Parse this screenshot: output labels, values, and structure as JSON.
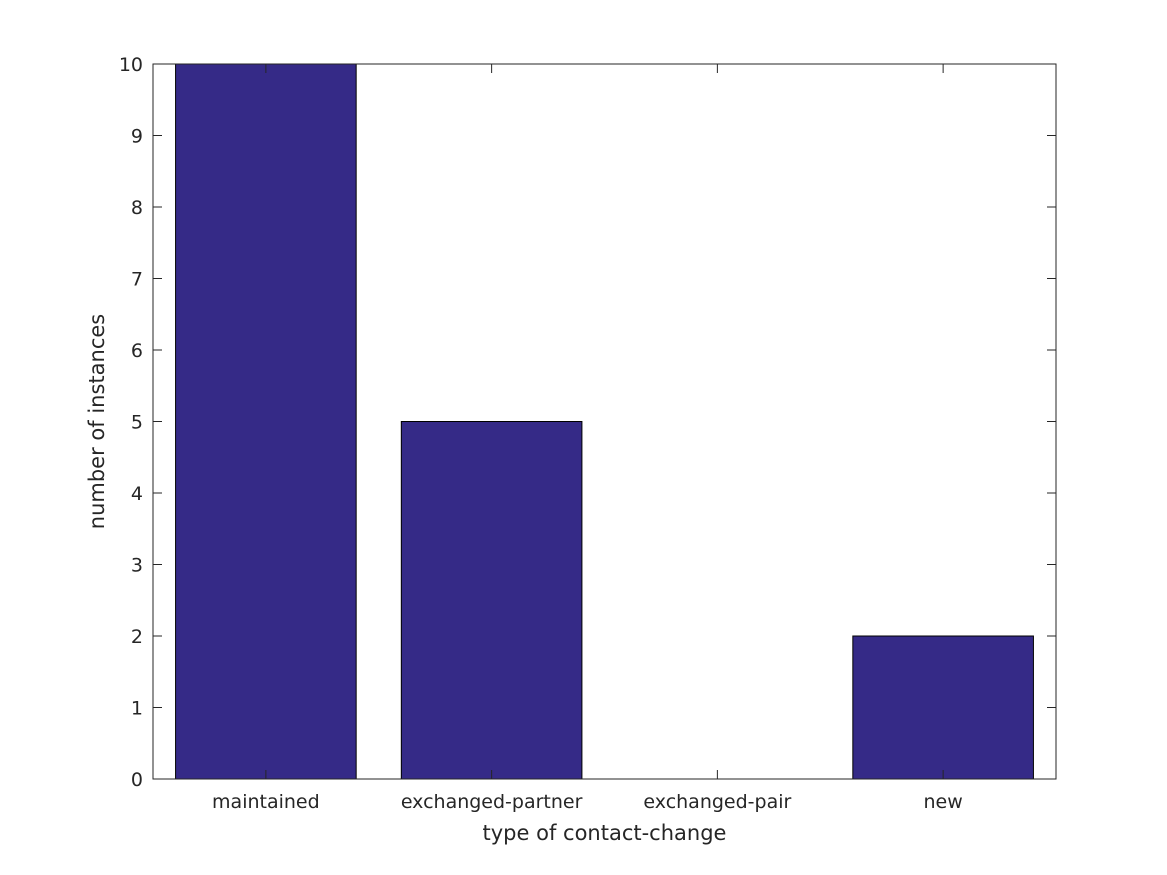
{
  "chart_data": {
    "type": "bar",
    "categories": [
      "maintained",
      "exchanged-partner",
      "exchanged-pair",
      "new"
    ],
    "values": [
      10,
      5,
      0,
      2
    ],
    "title": "",
    "xlabel": "type of contact-change",
    "ylabel": "number of instances",
    "ylim": [
      0,
      10
    ],
    "yticks": [
      0,
      1,
      2,
      3,
      4,
      5,
      6,
      7,
      8,
      9,
      10
    ],
    "grid": false,
    "bar_color": "#352a87",
    "edge_color": "#000000"
  }
}
